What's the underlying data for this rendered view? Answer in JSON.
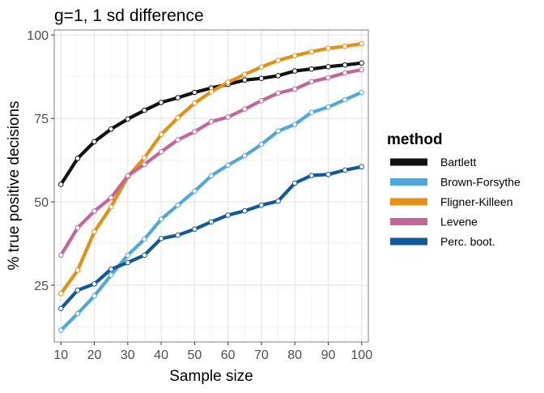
{
  "chart_data": {
    "type": "line",
    "title": "g=1, 1 sd difference",
    "xlabel": "Sample size",
    "ylabel": "% true positive decisions",
    "xlim": [
      8,
      102
    ],
    "ylim": [
      8,
      101.5
    ],
    "xticks": [
      10,
      20,
      30,
      40,
      50,
      60,
      70,
      80,
      90,
      100
    ],
    "yticks": [
      25,
      50,
      75,
      100
    ],
    "grid": true,
    "legend": {
      "title": "method",
      "position": "right"
    },
    "x": [
      10,
      15,
      20,
      25,
      30,
      35,
      40,
      45,
      50,
      55,
      60,
      65,
      70,
      75,
      80,
      85,
      90,
      95,
      100
    ],
    "series": [
      {
        "name": "Bartlett",
        "color": "#111111",
        "values": [
          55.2,
          63.0,
          68.0,
          71.8,
          74.8,
          77.4,
          79.8,
          81.2,
          82.8,
          84.1,
          85.2,
          86.5,
          87.0,
          87.8,
          89.2,
          89.8,
          90.5,
          91.0,
          91.6
        ]
      },
      {
        "name": "Brown-Forsythe",
        "color": "#4ea8de",
        "values": [
          11.5,
          16.5,
          21.8,
          28.0,
          34.0,
          38.8,
          44.8,
          49.0,
          53.2,
          57.8,
          61.0,
          63.8,
          67.2,
          71.2,
          73.2,
          76.8,
          78.4,
          80.6,
          82.8
        ]
      },
      {
        "name": "Fligner-Killeen",
        "color": "#e69012",
        "values": [
          22.5,
          29.5,
          41.0,
          48.5,
          57.5,
          63.2,
          70.2,
          75.2,
          79.6,
          83.0,
          85.8,
          88.2,
          90.4,
          92.4,
          93.8,
          95.0,
          96.0,
          96.6,
          97.4
        ]
      },
      {
        "name": "Levene",
        "color": "#c5649a",
        "values": [
          34.0,
          42.2,
          47.2,
          51.2,
          57.8,
          61.2,
          65.0,
          68.6,
          71.0,
          74.0,
          75.4,
          77.8,
          80.3,
          82.6,
          83.8,
          86.0,
          87.2,
          88.6,
          89.6
        ]
      },
      {
        "name": "Perc. boot.",
        "color": "#0e5a9c",
        "values": [
          18.0,
          23.5,
          25.4,
          29.8,
          31.8,
          34.0,
          39.0,
          40.0,
          41.8,
          44.0,
          46.0,
          47.3,
          49.0,
          50.2,
          55.6,
          57.9,
          58.2,
          59.5,
          60.5
        ]
      }
    ]
  }
}
